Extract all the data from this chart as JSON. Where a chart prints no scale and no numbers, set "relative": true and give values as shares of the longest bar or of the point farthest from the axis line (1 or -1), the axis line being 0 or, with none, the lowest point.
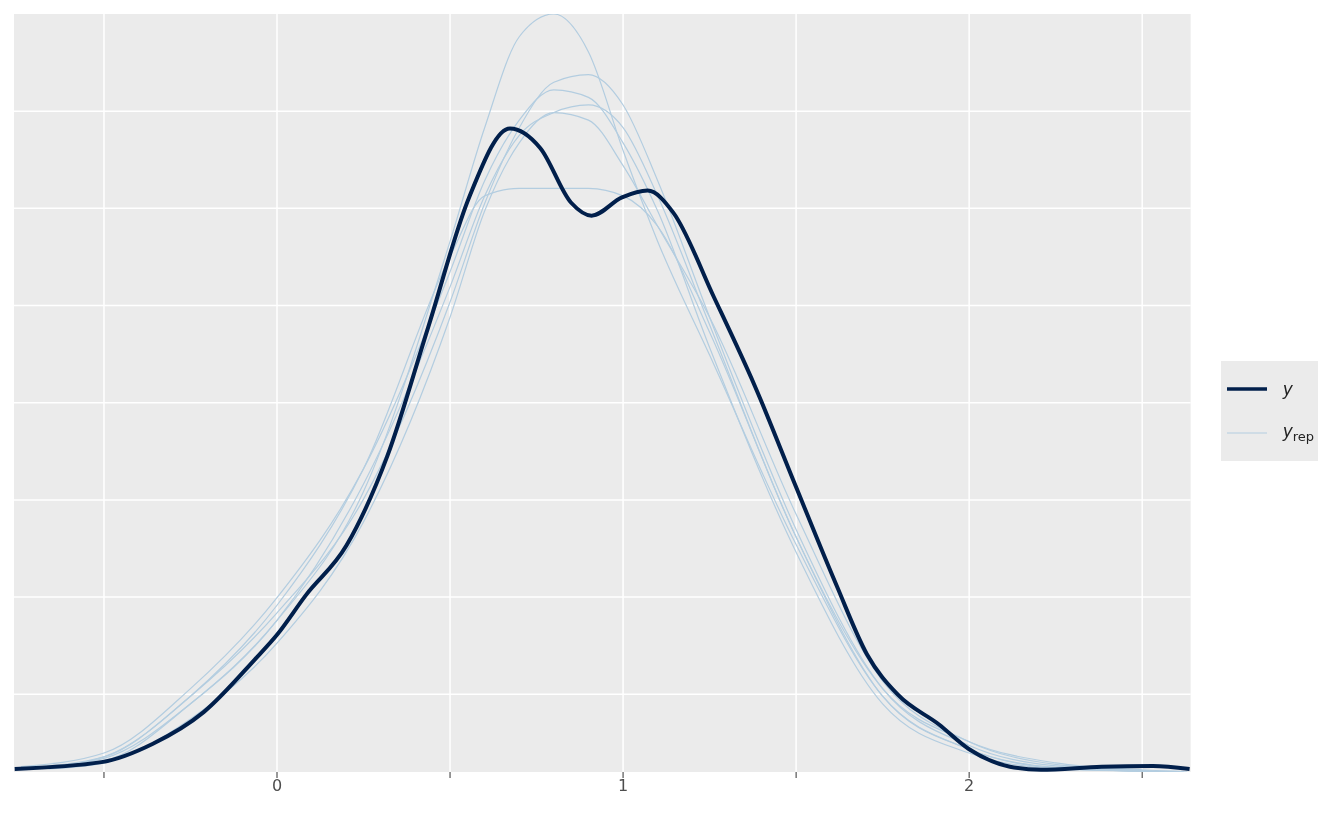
{
  "chart_data": {
    "type": "line",
    "relative": true,
    "xlim": [
      -0.76,
      2.64
    ],
    "xticks": [
      {
        "value": -0.5,
        "label": null
      },
      0,
      {
        "value": 0.5,
        "label": null
      },
      1,
      {
        "value": 1.5,
        "label": null
      },
      2,
      {
        "value": 2.5,
        "label": null
      }
    ],
    "grid": true,
    "legend": "right",
    "series": [
      {
        "name": "y",
        "color": "#011f4b",
        "x": [
          -0.758,
          -0.507,
          -0.36,
          -0.212,
          -0.065,
          0,
          0.083,
          0.201,
          0.319,
          0.437,
          0.555,
          0.673,
          0.761,
          0.85,
          0.909,
          0.997,
          1.071,
          1.145,
          1.263,
          1.381,
          1.499,
          1.617,
          1.705,
          1.794,
          1.912,
          2.0,
          2.118,
          2.207,
          2.383,
          2.531,
          2.637
        ],
        "values": [
          0.004,
          0.013,
          0.037,
          0.079,
          0.148,
          0.181,
          0.233,
          0.299,
          0.417,
          0.587,
          0.758,
          0.849,
          0.823,
          0.751,
          0.734,
          0.758,
          0.767,
          0.738,
          0.626,
          0.509,
          0.377,
          0.246,
          0.155,
          0.102,
          0.063,
          0.03,
          0.007,
          0.003,
          0.007,
          0.008,
          0.004
        ]
      },
      {
        "name": "y$_{rep}$",
        "color": "#b3cde0",
        "x": [
          -0.7,
          -0.5,
          -0.25,
          0,
          0.25,
          0.5,
          0.6,
          0.7,
          0.8,
          0.9,
          1.0,
          1.1,
          1.25,
          1.5,
          1.75,
          2.0,
          2.25,
          2.5,
          2.6
        ],
        "values": [
          0.006,
          0.015,
          0.09,
          0.2,
          0.37,
          0.7,
          0.85,
          0.97,
          1.0,
          0.95,
          0.82,
          0.7,
          0.55,
          0.3,
          0.1,
          0.03,
          0.005,
          0.001,
          0
        ]
      },
      {
        "color": "#b3cde0",
        "x": [
          -0.72,
          -0.5,
          -0.25,
          0,
          0.25,
          0.5,
          0.6,
          0.7,
          0.8,
          0.9,
          1.0,
          1.1,
          1.25,
          1.5,
          1.75,
          2.0,
          2.25,
          2.5,
          2.62
        ],
        "values": [
          0.006,
          0.02,
          0.1,
          0.21,
          0.36,
          0.62,
          0.75,
          0.85,
          0.91,
          0.92,
          0.88,
          0.78,
          0.6,
          0.32,
          0.11,
          0.035,
          0.008,
          0.002,
          0.001
        ]
      },
      {
        "color": "#b3cde0",
        "x": [
          -0.68,
          -0.5,
          -0.25,
          0,
          0.25,
          0.5,
          0.6,
          0.7,
          0.8,
          0.9,
          1.0,
          1.1,
          1.25,
          1.5,
          1.75,
          2.0,
          2.25,
          2.5,
          2.58
        ],
        "values": [
          0.006,
          0.02,
          0.1,
          0.22,
          0.4,
          0.68,
          0.76,
          0.77,
          0.77,
          0.77,
          0.76,
          0.72,
          0.58,
          0.31,
          0.1,
          0.03,
          0.006,
          0.001,
          0
        ]
      },
      {
        "color": "#b3cde0",
        "x": [
          -0.66,
          -0.5,
          -0.25,
          0,
          0.25,
          0.5,
          0.6,
          0.7,
          0.8,
          0.9,
          1.0,
          1.1,
          1.25,
          1.5,
          1.75,
          2.0,
          2.25,
          2.5,
          2.56
        ],
        "values": [
          0.004,
          0.012,
          0.07,
          0.17,
          0.33,
          0.6,
          0.74,
          0.83,
          0.87,
          0.86,
          0.8,
          0.72,
          0.6,
          0.34,
          0.12,
          0.04,
          0.01,
          0.002,
          0
        ]
      },
      {
        "color": "#b3cde0",
        "x": [
          -0.74,
          -0.5,
          -0.25,
          0,
          0.25,
          0.5,
          0.6,
          0.7,
          0.8,
          0.9,
          1.0,
          1.1,
          1.25,
          1.5,
          1.75,
          2.0,
          2.25,
          2.5,
          2.6
        ],
        "values": [
          0.007,
          0.025,
          0.11,
          0.23,
          0.4,
          0.66,
          0.78,
          0.86,
          0.9,
          0.89,
          0.83,
          0.74,
          0.56,
          0.29,
          0.09,
          0.025,
          0.004,
          0.001,
          0
        ]
      },
      {
        "color": "#b3cde0",
        "x": [
          -0.7,
          -0.5,
          -0.25,
          0,
          0.25,
          0.5,
          0.6,
          0.7,
          0.8,
          0.9,
          1.0,
          1.1,
          1.25,
          1.5,
          1.75,
          2.0,
          2.25,
          2.5,
          2.63
        ],
        "values": [
          0.006,
          0.018,
          0.09,
          0.2,
          0.38,
          0.64,
          0.76,
          0.84,
          0.87,
          0.88,
          0.85,
          0.76,
          0.59,
          0.31,
          0.11,
          0.04,
          0.012,
          0.003,
          0
        ]
      }
    ]
  }
}
